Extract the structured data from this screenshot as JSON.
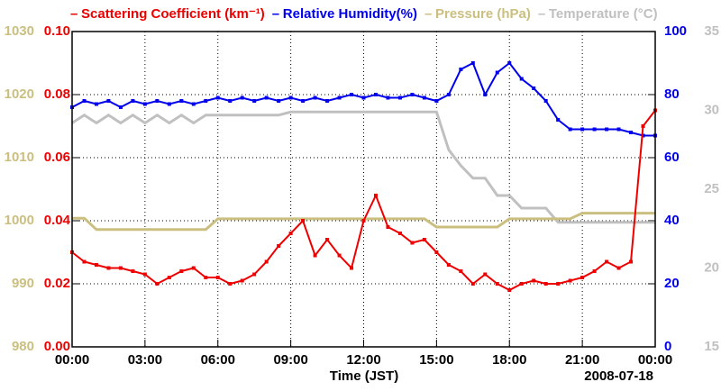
{
  "chart_data": {
    "type": "line",
    "x_label": "Time (JST)",
    "date_label": "2008-07-18",
    "x": [
      0,
      0.5,
      1,
      1.5,
      2,
      2.5,
      3,
      3.5,
      4,
      4.5,
      5,
      5.5,
      6,
      6.5,
      7,
      7.5,
      8,
      8.5,
      9,
      9.5,
      10,
      10.5,
      11,
      11.5,
      12,
      12.5,
      13,
      13.5,
      14,
      14.5,
      15,
      15.5,
      16,
      16.5,
      17,
      17.5,
      18,
      18.5,
      19,
      19.5,
      20,
      20.5,
      21,
      21.5,
      22,
      22.5,
      23,
      23.5,
      24
    ],
    "xlim": [
      0,
      24
    ],
    "xticks": [
      {
        "value": 0,
        "label": "00:00"
      },
      {
        "value": 3,
        "label": "03:00"
      },
      {
        "value": 6,
        "label": "06:00"
      },
      {
        "value": 9,
        "label": "09:00"
      },
      {
        "value": 12,
        "label": "12:00"
      },
      {
        "value": 15,
        "label": "15:00"
      },
      {
        "value": 18,
        "label": "18:00"
      },
      {
        "value": 21,
        "label": "21:00"
      },
      {
        "value": 24,
        "label": "00:00"
      }
    ],
    "ylim": [
      0,
      0.1
    ],
    "yticks": [
      {
        "value": 0,
        "label": "0.00"
      },
      0.02,
      0.04,
      0.06,
      0.08,
      {
        "value": 0.1,
        "label": "0.10"
      }
    ],
    "y2lim": [
      0,
      100
    ],
    "y2ticks": [
      0,
      20,
      40,
      60,
      80,
      100
    ],
    "y3lim": [
      980,
      1030
    ],
    "y3ticks": [
      980,
      990,
      1000,
      1010,
      1020,
      1030
    ],
    "y4lim": [
      15,
      35
    ],
    "y4ticks": [
      15,
      20,
      25,
      30,
      35
    ],
    "grid": true,
    "series": [
      {
        "name": "Scattering Coefficient (km⁻¹)",
        "color": "#ee0000",
        "axis": "y",
        "values": [
          0.03,
          0.027,
          0.026,
          0.025,
          0.025,
          0.024,
          0.023,
          0.02,
          0.022,
          0.024,
          0.025,
          0.022,
          0.022,
          0.02,
          0.021,
          0.023,
          0.027,
          0.032,
          0.036,
          0.04,
          0.029,
          0.034,
          0.029,
          0.025,
          0.04,
          0.048,
          0.038,
          0.036,
          0.033,
          0.034,
          0.03,
          0.026,
          0.024,
          0.02,
          0.023,
          0.02,
          0.018,
          0.02,
          0.021,
          0.02,
          0.02,
          0.021,
          0.022,
          0.024,
          0.027,
          0.025,
          0.027,
          0.07,
          0.075
        ]
      },
      {
        "name": "Relative Humidity(%)",
        "color": "#0000ee",
        "axis": "y2",
        "values": [
          76,
          78,
          77,
          78,
          76,
          78,
          77,
          78,
          77,
          78,
          77,
          78,
          79,
          78,
          79,
          78,
          79,
          78,
          79,
          78,
          79,
          78,
          79,
          80,
          79,
          80,
          79,
          79,
          80,
          79,
          78,
          80,
          88,
          90,
          80,
          87,
          90,
          85,
          82,
          78,
          72,
          69,
          69,
          69,
          69,
          69,
          68,
          67,
          67
        ]
      },
      {
        "name": "Pressure (hPa)",
        "color": "#cbbf80",
        "axis": "y3",
        "values": [
          1000.4,
          1000.4,
          998.6,
          998.6,
          998.6,
          998.6,
          998.6,
          998.6,
          998.6,
          998.6,
          998.6,
          998.6,
          1000.3,
          1000.3,
          1000.3,
          1000.3,
          1000.3,
          1000.3,
          1000.3,
          1000.3,
          1000.3,
          1000.3,
          1000.3,
          1000.3,
          1000.3,
          1000.3,
          1000.3,
          1000.3,
          1000.3,
          1000.3,
          999.0,
          999.0,
          999.0,
          999.0,
          999.0,
          999.0,
          1000.3,
          1000.3,
          1000.3,
          1000.3,
          1000.3,
          1000.3,
          1001.2,
          1001.2,
          1001.2,
          1001.2,
          1001.2,
          1001.2,
          1001.2
        ]
      },
      {
        "name": "Temperature (°C)",
        "color": "#c0c0c0",
        "axis": "y4",
        "values": [
          29.2,
          29.7,
          29.2,
          29.7,
          29.2,
          29.7,
          29.2,
          29.7,
          29.2,
          29.7,
          29.2,
          29.7,
          29.7,
          29.7,
          29.7,
          29.7,
          29.7,
          29.7,
          29.9,
          29.9,
          29.9,
          29.9,
          29.9,
          29.9,
          29.9,
          29.9,
          29.9,
          29.9,
          29.9,
          29.9,
          29.9,
          27.5,
          26.5,
          25.7,
          25.7,
          24.6,
          24.6,
          23.8,
          23.8,
          23.8,
          22.9,
          22.9,
          22.9,
          22.9,
          22.9,
          22.9,
          22.9,
          22.9,
          22.9
        ]
      }
    ]
  }
}
